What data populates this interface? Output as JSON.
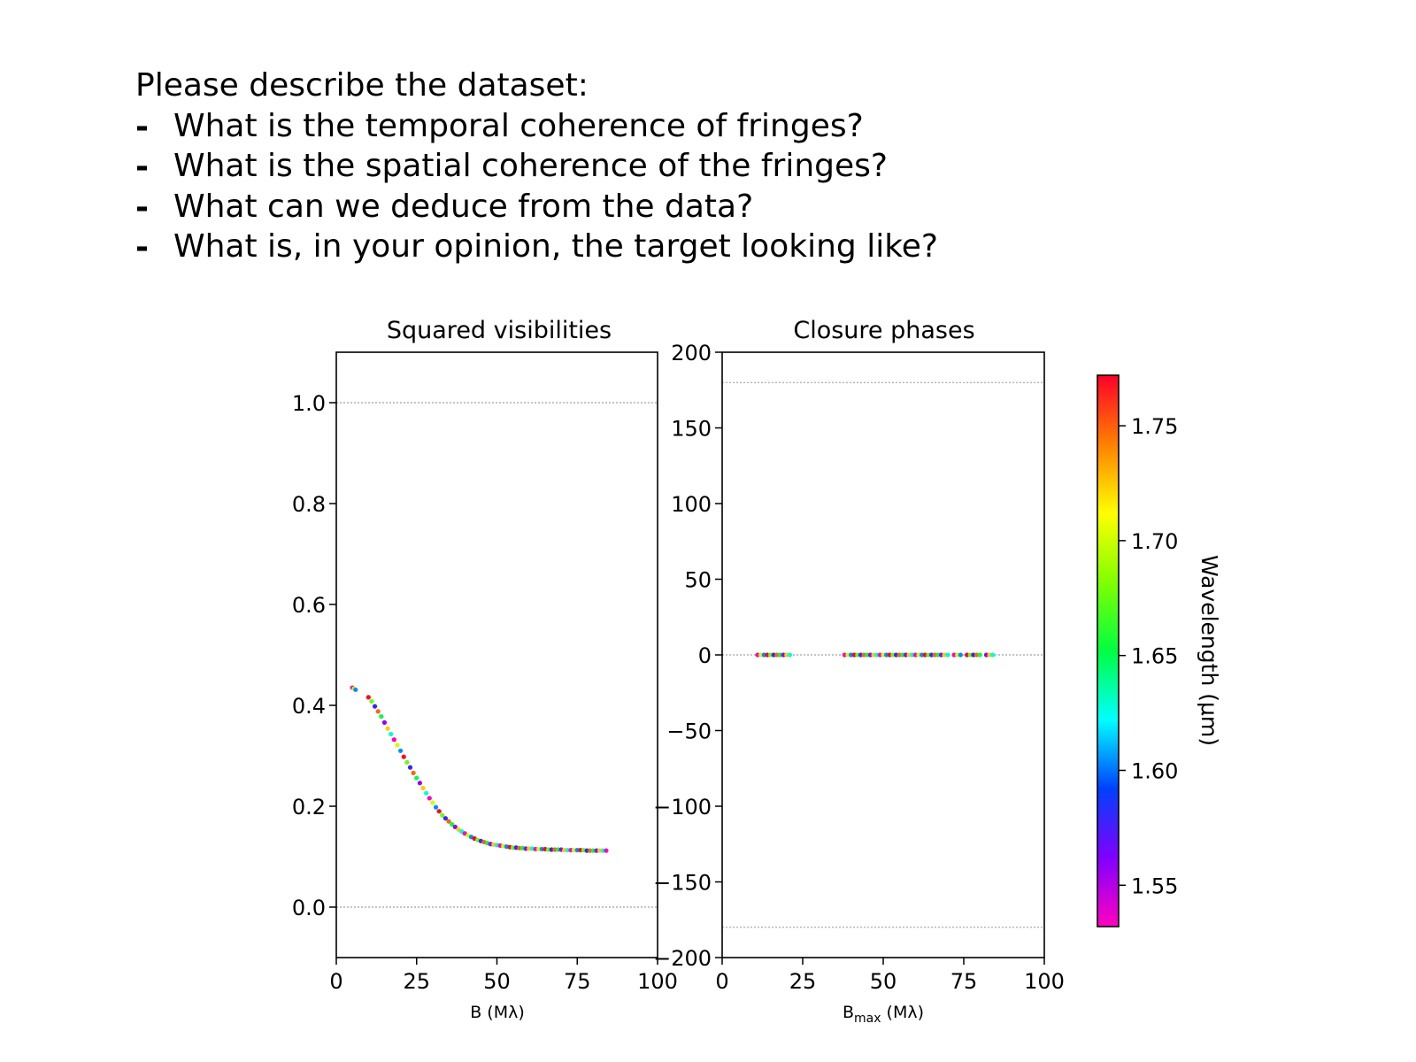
{
  "questions": {
    "heading": "Please describe the dataset:",
    "bullet": "-",
    "items": [
      "What is the temporal coherence of fringes?",
      "What is the spatial coherence of the fringes?",
      "What can we deduce from the data?",
      "What is, in your opinion, the target looking like?"
    ]
  },
  "chart_data": [
    {
      "type": "scatter",
      "title": "Squared visibilities",
      "xlabel": "B (Mλ)",
      "ylabel": "",
      "xlim": [
        0,
        100
      ],
      "ylim": [
        -0.1,
        1.1
      ],
      "xticks": [
        "0",
        "25",
        "50",
        "75",
        "100"
      ],
      "yticks": [
        "0.0",
        "0.2",
        "0.4",
        "0.6",
        "0.8",
        "1.0"
      ],
      "reference_lines_y": [
        0.0,
        1.0
      ],
      "color_by": "wavelength",
      "points_x": [
        5,
        5.5,
        6,
        10,
        11,
        12,
        13,
        14,
        15,
        16,
        17,
        18,
        19,
        20,
        21,
        22,
        23,
        24,
        25,
        26,
        27,
        28,
        29,
        30,
        31,
        32,
        33,
        34,
        35,
        36,
        37,
        38,
        39,
        40,
        41,
        42,
        43,
        44,
        45,
        46,
        47,
        48,
        49,
        50,
        51,
        52,
        53,
        54,
        55,
        56,
        57,
        58,
        59,
        60,
        61,
        62,
        63,
        64,
        65,
        66,
        67,
        68,
        69,
        70,
        71,
        72,
        73,
        74,
        75,
        76,
        77,
        78,
        79,
        80,
        81,
        82,
        83,
        84
      ],
      "points_y": [
        0.435,
        0.433,
        0.431,
        0.416,
        0.408,
        0.398,
        0.388,
        0.378,
        0.366,
        0.354,
        0.343,
        0.332,
        0.321,
        0.31,
        0.298,
        0.287,
        0.277,
        0.266,
        0.256,
        0.246,
        0.236,
        0.226,
        0.216,
        0.207,
        0.198,
        0.19,
        0.182,
        0.176,
        0.17,
        0.164,
        0.159,
        0.154,
        0.15,
        0.146,
        0.142,
        0.139,
        0.136,
        0.133,
        0.131,
        0.129,
        0.127,
        0.125,
        0.124,
        0.123,
        0.122,
        0.121,
        0.12,
        0.119,
        0.118,
        0.118,
        0.117,
        0.117,
        0.116,
        0.116,
        0.116,
        0.115,
        0.115,
        0.115,
        0.115,
        0.114,
        0.114,
        0.114,
        0.114,
        0.114,
        0.113,
        0.113,
        0.113,
        0.113,
        0.113,
        0.113,
        0.113,
        0.112,
        0.112,
        0.112,
        0.112,
        0.112,
        0.112,
        0.112
      ]
    },
    {
      "type": "scatter",
      "title": "Closure phases",
      "xlabel": "B",
      "xlabel_sub": "max",
      "xlabel_unit": " (Mλ)",
      "ylabel": "",
      "xlim": [
        0,
        100
      ],
      "ylim": [
        -200,
        200
      ],
      "xticks": [
        "0",
        "25",
        "50",
        "75",
        "100"
      ],
      "yticks": [
        "−200",
        "−150",
        "−100",
        "−50",
        "0",
        "50",
        "100",
        "150",
        "200"
      ],
      "reference_lines_y": [
        -180,
        0,
        180
      ],
      "color_by": "wavelength",
      "points_x": [
        11,
        12,
        13,
        14,
        15,
        16,
        17,
        18,
        19,
        20,
        21,
        38,
        39,
        40,
        41,
        42,
        43,
        44,
        45,
        46,
        47,
        48,
        49,
        50,
        51,
        52,
        53,
        54,
        55,
        56,
        57,
        58,
        59,
        60,
        61,
        62,
        63,
        64,
        65,
        66,
        67,
        68,
        69,
        70,
        72,
        73,
        74,
        76,
        77,
        78,
        79,
        80,
        82,
        83,
        84
      ],
      "points_y": [
        0,
        0,
        0,
        0,
        0,
        0,
        0,
        0,
        0,
        0,
        0,
        0,
        0,
        0,
        0,
        0,
        0,
        0,
        0,
        0,
        0,
        0,
        0,
        0,
        0,
        0,
        0,
        0,
        0,
        0,
        0,
        0,
        0,
        0,
        0,
        0,
        0,
        0,
        0,
        0,
        0,
        0,
        0,
        0,
        0,
        0,
        0,
        0,
        0,
        0,
        0,
        0,
        0,
        0,
        0
      ]
    }
  ],
  "colorbar": {
    "label": "Wavelength (μm)",
    "range": [
      1.532,
      1.772
    ],
    "ticks": [
      "1.55",
      "1.60",
      "1.65",
      "1.70",
      "1.75"
    ],
    "colormap": "gist_rainbow_r",
    "colors": [
      "#ff00bf",
      "#8000ff",
      "#0040ff",
      "#00ffff",
      "#00ff40",
      "#80ff00",
      "#ffff00",
      "#ff8000",
      "#ff0029"
    ]
  }
}
